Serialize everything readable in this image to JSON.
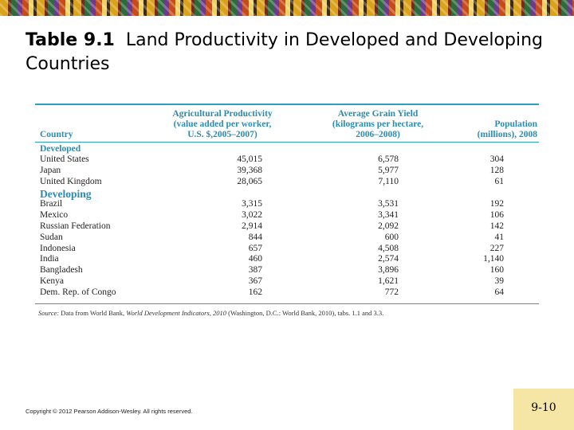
{
  "slide": {
    "title_number": "Table 9.1",
    "title_text": "Land Productivity in Developed and Developing Countries",
    "copyright": "Copyright © 2012 Pearson Addison-Wesley. All rights reserved.",
    "page_number": "9-10"
  },
  "table": {
    "headers": {
      "country": "Country",
      "agri_1": "Agricultural Productivity",
      "agri_2": "(value added per worker,",
      "agri_3": "U.S. $,2005–2007)",
      "grain_1": "Average Grain Yield",
      "grain_2": "(kilograms per hectare,",
      "grain_3": "2006–2008)",
      "pop_1": "Population",
      "pop_2": "(millions), 2008"
    },
    "developed_label": "Developed",
    "developing_label": "Developing",
    "developed": [
      {
        "country": "United States",
        "agri": "45,015",
        "grain": "6,578",
        "pop": "304"
      },
      {
        "country": "Japan",
        "agri": "39,368",
        "grain": "5,977",
        "pop": "128"
      },
      {
        "country": "United Kingdom",
        "agri": "28,065",
        "grain": "7,110",
        "pop": "61"
      }
    ],
    "developing": [
      {
        "country": "Brazil",
        "agri": "3,315",
        "grain": "3,531",
        "pop": "192"
      },
      {
        "country": "Mexico",
        "agri": "3,022",
        "grain": "3,341",
        "pop": "106"
      },
      {
        "country": "Russian Federation",
        "agri": "2,914",
        "grain": "2,092",
        "pop": "142"
      },
      {
        "country": "Sudan",
        "agri": "844",
        "grain": "600",
        "pop": "41"
      },
      {
        "country": "Indonesia",
        "agri": "657",
        "grain": "4,508",
        "pop": "227"
      },
      {
        "country": "India",
        "agri": "460",
        "grain": "2,574",
        "pop": "1,140"
      },
      {
        "country": "Bangladesh",
        "agri": "387",
        "grain": "3,896",
        "pop": "160"
      },
      {
        "country": "Kenya",
        "agri": "367",
        "grain": "1,621",
        "pop": "39"
      },
      {
        "country": "Dem. Rep. of Congo",
        "agri": "162",
        "grain": "772",
        "pop": "64"
      }
    ],
    "source_label": "Source:",
    "source_pre": "Data from World Bank,",
    "source_title": "World Development Indicators, 2010",
    "source_post": "(Washington, D.C.: World Bank, 2010), tabs. 1.1 and 3.3."
  },
  "colors": {
    "accent": "#2b8cb0",
    "page_number_bg": "#f6e6a6"
  }
}
